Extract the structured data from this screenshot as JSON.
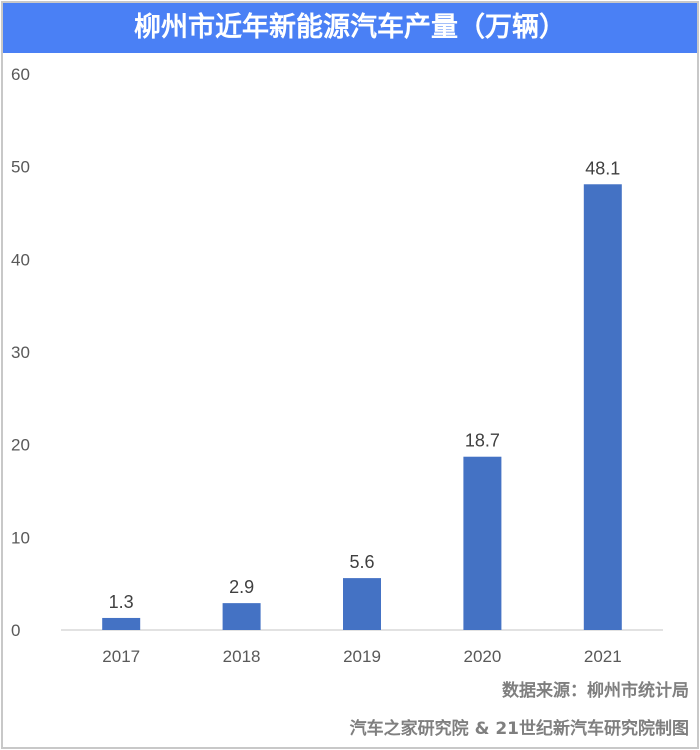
{
  "chart_data": {
    "type": "bar",
    "title": "柳州市近年新能源汽车产量（万辆）",
    "categories": [
      "2017",
      "2018",
      "2019",
      "2020",
      "2021"
    ],
    "values": [
      1.3,
      2.9,
      5.6,
      18.7,
      48.1
    ],
    "data_labels": [
      "1.3",
      "2.9",
      "5.6",
      "18.7",
      "48.1"
    ],
    "ylim": [
      0,
      60
    ],
    "yticks": [
      "0",
      "10",
      "20",
      "30",
      "40",
      "50",
      "60"
    ],
    "grid": false,
    "bar_color": "#4472c4",
    "title_bg": "#4a80f5"
  },
  "footer": {
    "source": "数据来源：柳州市统计局",
    "credit": "汽车之家研究院 & 21世纪新汽车研究院制图"
  }
}
